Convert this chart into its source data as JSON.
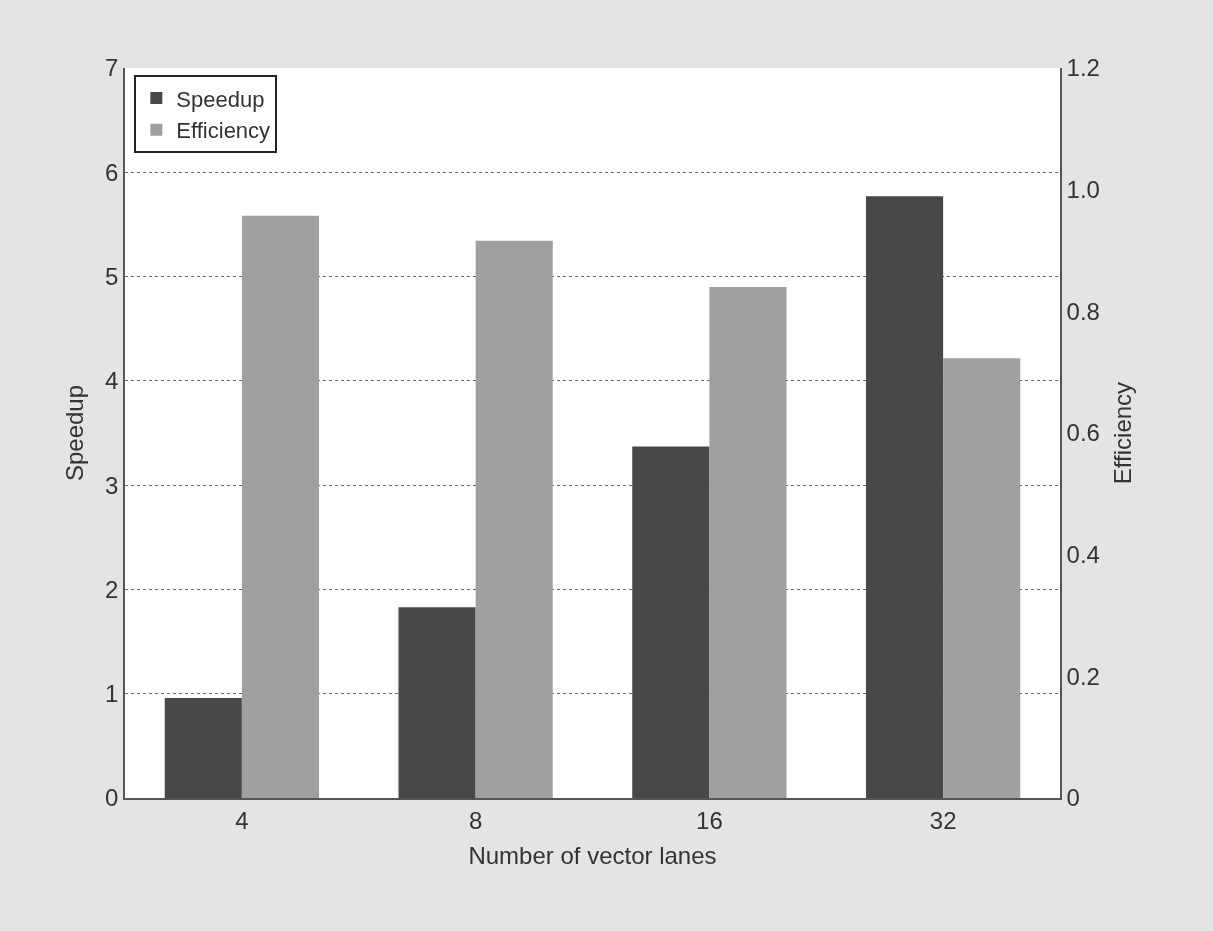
{
  "chart_data": {
    "type": "bar",
    "xlabel": "Number of vector lanes",
    "ylabel": "Speedup",
    "y2label": "Efficiency",
    "categories": [
      "4",
      "8",
      "16",
      "32"
    ],
    "series": [
      {
        "name": "Speedup",
        "color": "#48484a",
        "values": [
          0.96,
          1.83,
          3.37,
          5.77
        ]
      },
      {
        "name": "Efficiency",
        "color": "#a0a0a3",
        "axis": "y2",
        "values": [
          0.957,
          0.916,
          0.84,
          0.723
        ]
      }
    ],
    "ylim": [
      0,
      7
    ],
    "yticks": [
      0,
      1,
      2,
      3,
      4,
      5,
      6,
      7
    ],
    "y2lim": [
      0,
      1.2
    ],
    "y2ticks": [
      0,
      0.2,
      0.4,
      0.6,
      0.8,
      {
        "value": 1,
        "label": "1.0"
      },
      1.2
    ],
    "grid": "y",
    "legend": "top left"
  }
}
